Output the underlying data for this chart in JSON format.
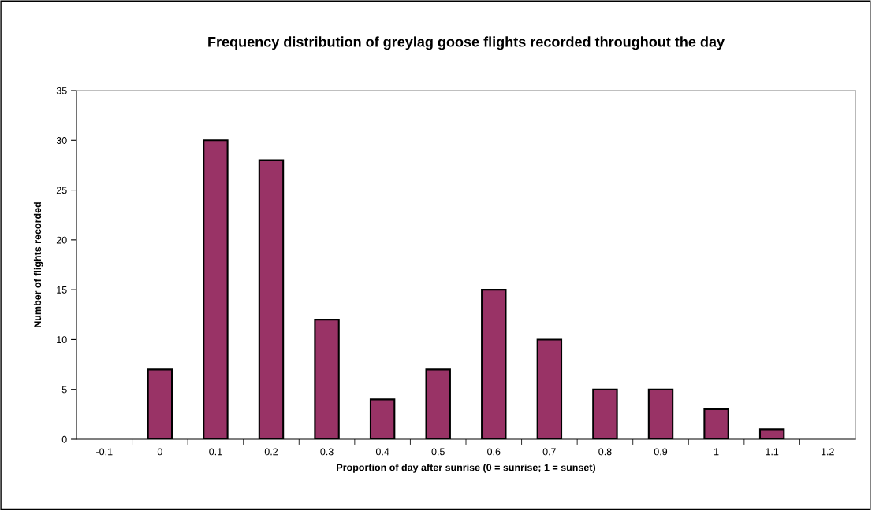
{
  "chart_data": {
    "type": "bar",
    "title": "Frequency distribution of greylag goose flights recorded throughout the day",
    "xlabel": "Proportion of day after sunrise (0 = sunrise; 1 = sunset)",
    "ylabel": "Number of flights recorded",
    "categories": [
      "-0.1",
      "0",
      "0.1",
      "0.2",
      "0.3",
      "0.4",
      "0.5",
      "0.6",
      "0.7",
      "0.8",
      "0.9",
      "1",
      "1.1",
      "1.2"
    ],
    "values": [
      0,
      7,
      30,
      28,
      12,
      4,
      7,
      15,
      10,
      5,
      5,
      3,
      1,
      0
    ],
    "color": "#993366",
    "ylim": [
      0,
      35
    ],
    "yticks": [
      0,
      5,
      10,
      15,
      20,
      25,
      30,
      35
    ],
    "grid": false
  }
}
